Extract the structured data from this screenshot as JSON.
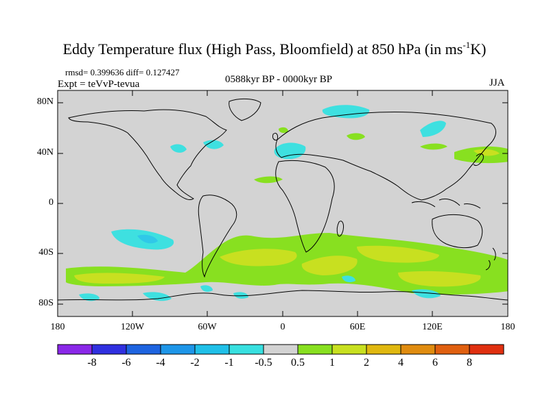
{
  "title": {
    "main": "Eddy Temperature flux (High Pass, Bloomfield) at 850 hPa (in ms",
    "superscript": "-1",
    "suffix": "K)"
  },
  "stats": "rmsd= 0.399636 diff= 0.127427",
  "experiment": "Expt = teVvP-tevua",
  "period": "0588kyr BP - 0000kyr BP",
  "season": "JJA",
  "y_axis_labels": [
    "80N",
    "40N",
    "0",
    "40S",
    "80S"
  ],
  "x_axis_labels": [
    "180",
    "120W",
    "60W",
    "0",
    "60E",
    "120E",
    "180"
  ],
  "colors": {
    "ocean_land_background": "#d3d3d3",
    "neg_light": "#3ee0e0",
    "neg_medium": "#30c8e8",
    "pos_light": "#88e020",
    "pos_medium": "#c8e020"
  },
  "colorbar": {
    "labels": [
      "-8",
      "-6",
      "-4",
      "-2",
      "-1",
      "-0.5",
      "0.5",
      "1",
      "2",
      "4",
      "6",
      "8"
    ],
    "colors": [
      "#8a28e8",
      "#3030e0",
      "#1e64e0",
      "#1e96e8",
      "#20c0e8",
      "#38e0e0",
      "#d3d3d3",
      "#88e020",
      "#c8e020",
      "#e0b810",
      "#e08c10",
      "#e06010",
      "#e03010"
    ]
  }
}
